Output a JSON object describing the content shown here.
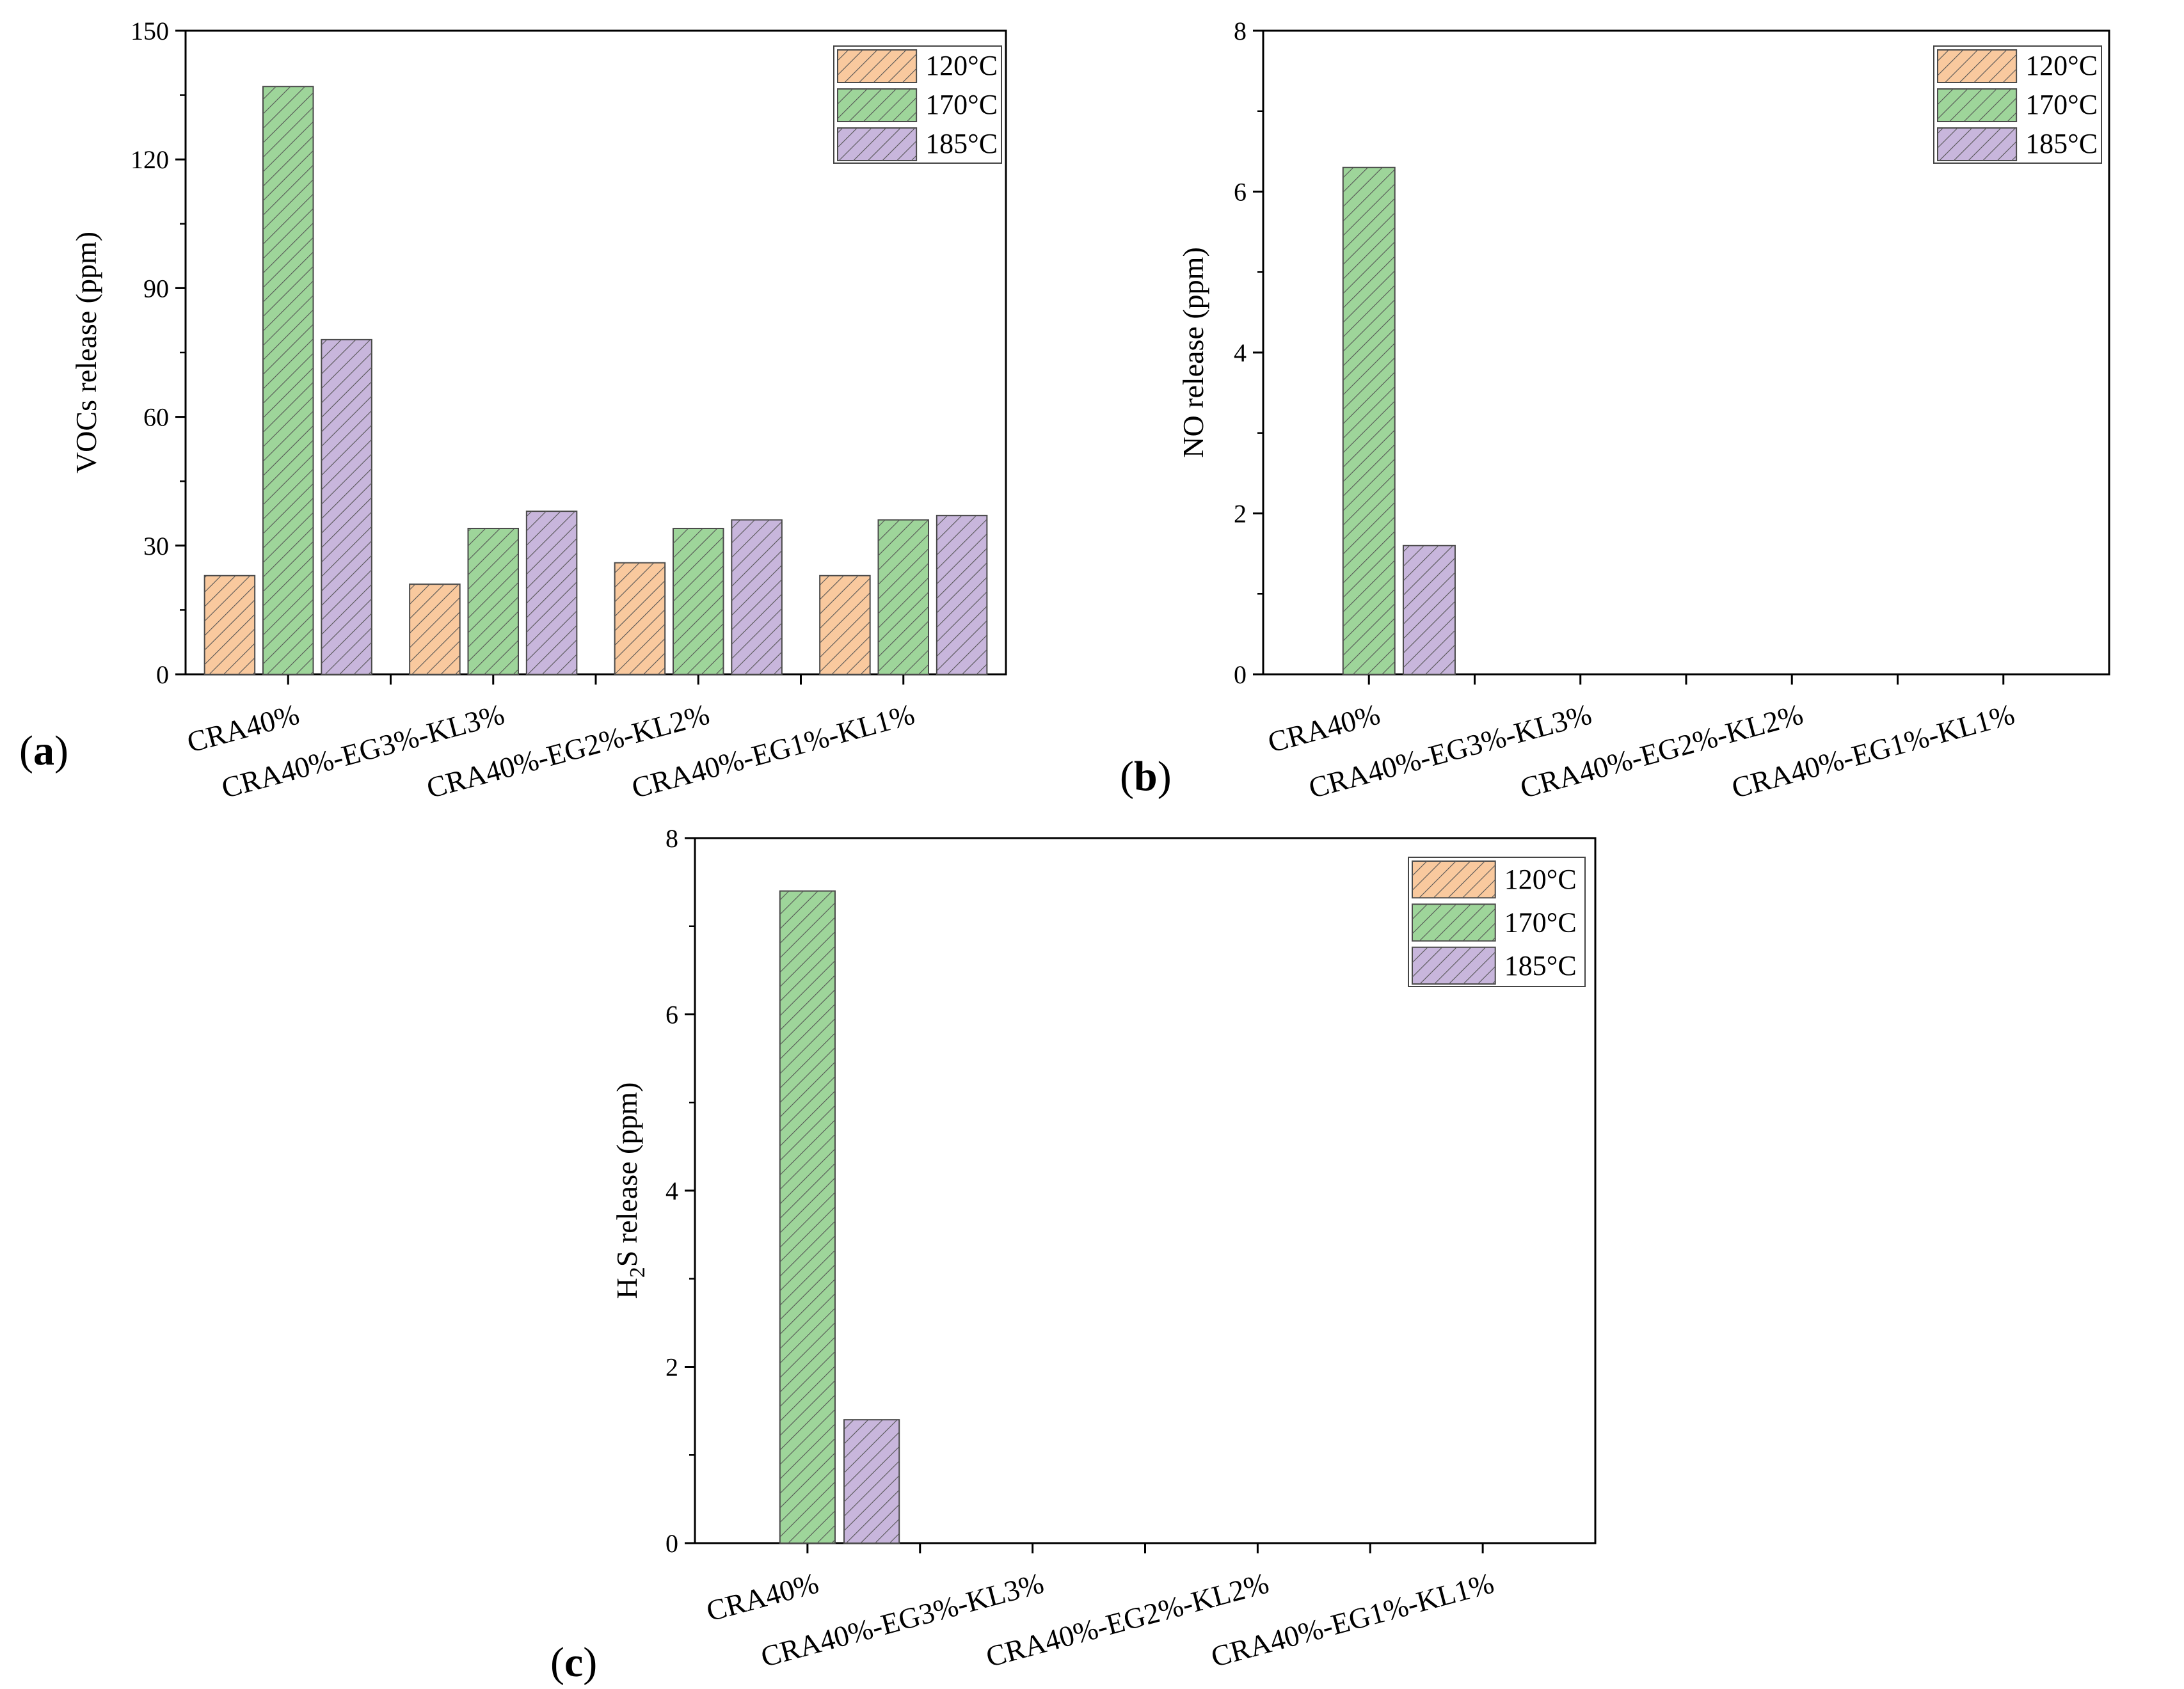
{
  "colors": {
    "120": "#f9c99e",
    "170": "#9ed59a",
    "185": "#c8b6dc",
    "hatch": "#555555",
    "edge": "#4a4a4a",
    "axis": "#000000"
  },
  "legend": {
    "series": [
      {
        "key": "120",
        "label": "120°C"
      },
      {
        "key": "170",
        "label": "170°C"
      },
      {
        "key": "185",
        "label": "185°C"
      }
    ]
  },
  "chart_data": [
    {
      "type": "bar",
      "panel": "a",
      "panel_label": [
        "(",
        "a",
        ")"
      ],
      "ylabel": "VOCs release (ppm)",
      "categories": [
        "CRA40%",
        "CRA40%-EG3%-KL3%",
        "CRA40%-EG2%-KL2%",
        "CRA40%-EG1%-KL1%"
      ],
      "ylim": [
        0,
        150
      ],
      "yticks": [
        0,
        30,
        60,
        90,
        120,
        150
      ],
      "series": [
        {
          "name": "120°C",
          "key": "120",
          "values": [
            23,
            21,
            26,
            23
          ]
        },
        {
          "name": "170°C",
          "key": "170",
          "values": [
            137,
            34,
            34,
            36
          ]
        },
        {
          "name": "185°C",
          "key": "185",
          "values": [
            78,
            38,
            36,
            37
          ]
        }
      ]
    },
    {
      "type": "bar",
      "panel": "b",
      "panel_label": [
        "(",
        "b",
        ")"
      ],
      "ylabel": "NO release (ppm)",
      "categories": [
        "CRA40%",
        "CRA40%-EG3%-KL3%",
        "CRA40%-EG2%-KL2%",
        "CRA40%-EG1%-KL1%"
      ],
      "ylim": [
        0,
        8
      ],
      "yticks": [
        0,
        2,
        4,
        6,
        8
      ],
      "series": [
        {
          "name": "120°C",
          "key": "120",
          "values": [
            0,
            0,
            0,
            0
          ]
        },
        {
          "name": "170°C",
          "key": "170",
          "values": [
            6.3,
            0,
            0,
            0
          ]
        },
        {
          "name": "185°C",
          "key": "185",
          "values": [
            1.6,
            0,
            0,
            0
          ]
        }
      ]
    },
    {
      "type": "bar",
      "panel": "c",
      "panel_label": [
        "(",
        "c",
        ")"
      ],
      "ylabel": "H",
      "ylabel_sub": "2",
      "ylabel_rest": "S release (ppm)",
      "categories": [
        "CRA40%",
        "CRA40%-EG3%-KL3%",
        "CRA40%-EG2%-KL2%",
        "CRA40%-EG1%-KL1%"
      ],
      "ylim": [
        0,
        8
      ],
      "yticks": [
        0,
        2,
        4,
        6,
        8
      ],
      "series": [
        {
          "name": "120°C",
          "key": "120",
          "values": [
            0,
            0,
            0,
            0
          ]
        },
        {
          "name": "170°C",
          "key": "170",
          "values": [
            7.4,
            0,
            0,
            0
          ]
        },
        {
          "name": "185°C",
          "key": "185",
          "values": [
            1.4,
            0,
            0,
            0
          ]
        }
      ]
    }
  ]
}
